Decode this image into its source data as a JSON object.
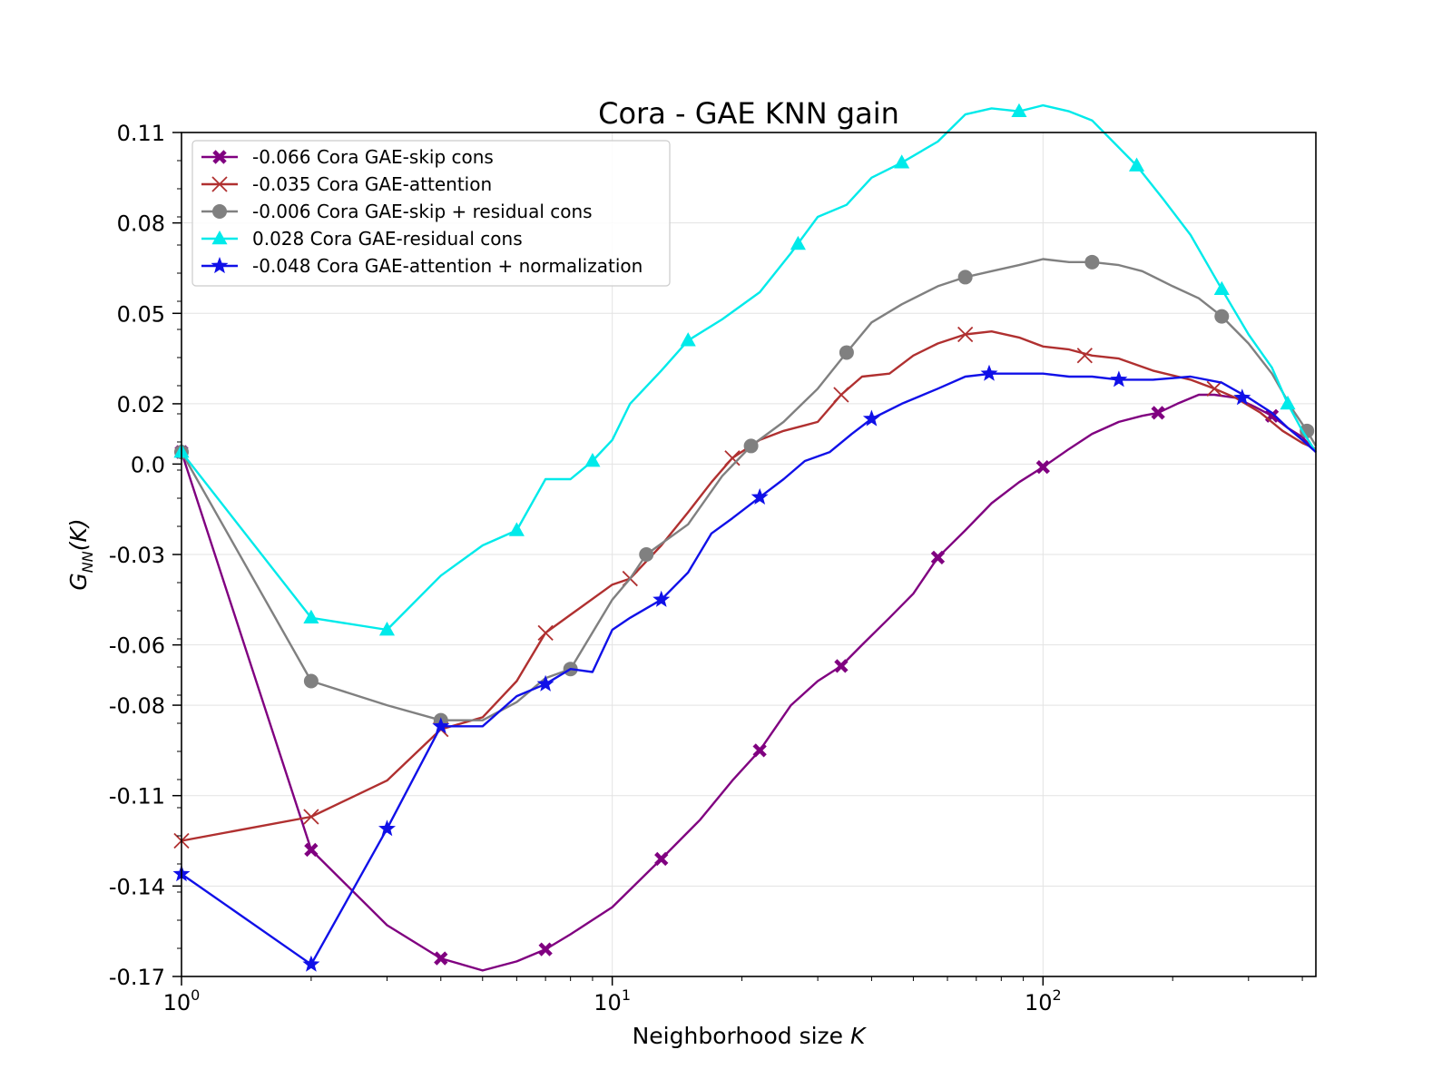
{
  "chart_data": {
    "type": "line",
    "title": "Cora - GAE KNN gain",
    "xlabel": "Neighborhood size",
    "xlabel_var": "K",
    "ylabel_main": "G",
    "ylabel_sub": "NN",
    "ylabel_arg": "(K)",
    "xscale": "log",
    "xlim": [
      1,
      430
    ],
    "ylim": [
      -0.17,
      0.11
    ],
    "x_ticks": [
      {
        "value": 1,
        "base": "10",
        "exp": "0"
      },
      {
        "value": 10,
        "base": "10",
        "exp": "1"
      },
      {
        "value": 100,
        "base": "10",
        "exp": "2"
      }
    ],
    "y_ticks": [
      {
        "value": 0.11,
        "label": "0.11"
      },
      {
        "value": 0.08,
        "label": "0.08"
      },
      {
        "value": 0.05,
        "label": "0.05"
      },
      {
        "value": 0.02,
        "label": "0.02"
      },
      {
        "value": 0.0,
        "label": "0.0"
      },
      {
        "value": -0.03,
        "label": "-0.03"
      },
      {
        "value": -0.06,
        "label": "-0.06"
      },
      {
        "value": -0.08,
        "label": "-0.08"
      },
      {
        "value": -0.11,
        "label": "-0.11"
      },
      {
        "value": -0.14,
        "label": "-0.14"
      },
      {
        "value": -0.17,
        "label": "-0.17"
      }
    ],
    "grid": true,
    "legend_position": "top-left",
    "series": [
      {
        "name": "-0.066 Cora GAE-skip cons",
        "color": "#800080",
        "marker": "X",
        "points": [
          [
            1,
            0.004
          ],
          [
            2,
            -0.128
          ],
          [
            3,
            -0.153
          ],
          [
            4,
            -0.164
          ],
          [
            5,
            -0.168
          ],
          [
            6,
            -0.165
          ],
          [
            7,
            -0.161
          ],
          [
            8,
            -0.156
          ],
          [
            10,
            -0.147
          ],
          [
            13,
            -0.131
          ],
          [
            16,
            -0.118
          ],
          [
            19,
            -0.105
          ],
          [
            22,
            -0.095
          ],
          [
            26,
            -0.08
          ],
          [
            30,
            -0.072
          ],
          [
            34,
            -0.067
          ],
          [
            38,
            -0.06
          ],
          [
            44,
            -0.051
          ],
          [
            50,
            -0.043
          ],
          [
            57,
            -0.031
          ],
          [
            66,
            -0.022
          ],
          [
            76,
            -0.013
          ],
          [
            88,
            -0.006
          ],
          [
            100,
            -0.001
          ],
          [
            115,
            0.005
          ],
          [
            130,
            0.01
          ],
          [
            150,
            0.014
          ],
          [
            170,
            0.016
          ],
          [
            185,
            0.017
          ],
          [
            205,
            0.02
          ],
          [
            230,
            0.023
          ],
          [
            250,
            0.023
          ],
          [
            280,
            0.022
          ],
          [
            310,
            0.019
          ],
          [
            340,
            0.016
          ],
          [
            370,
            0.012
          ],
          [
            400,
            0.009
          ],
          [
            430,
            0.004
          ]
        ],
        "markers": [
          [
            1,
            0.004
          ],
          [
            2,
            -0.128
          ],
          [
            4,
            -0.164
          ],
          [
            7,
            -0.161
          ],
          [
            13,
            -0.131
          ],
          [
            22,
            -0.095
          ],
          [
            34,
            -0.067
          ],
          [
            57,
            -0.031
          ],
          [
            100,
            -0.001
          ],
          [
            185,
            0.017
          ],
          [
            340,
            0.016
          ]
        ]
      },
      {
        "name": "-0.035 Cora GAE-attention",
        "color": "#b03030",
        "marker": "x",
        "points": [
          [
            1,
            -0.125
          ],
          [
            2,
            -0.117
          ],
          [
            3,
            -0.105
          ],
          [
            4,
            -0.088
          ],
          [
            5,
            -0.084
          ],
          [
            6,
            -0.072
          ],
          [
            7,
            -0.056
          ],
          [
            8,
            -0.05
          ],
          [
            10,
            -0.04
          ],
          [
            11,
            -0.038
          ],
          [
            13,
            -0.027
          ],
          [
            15,
            -0.016
          ],
          [
            17,
            -0.006
          ],
          [
            19,
            0.002
          ],
          [
            22,
            0.008
          ],
          [
            25,
            0.011
          ],
          [
            30,
            0.014
          ],
          [
            34,
            0.023
          ],
          [
            38,
            0.029
          ],
          [
            44,
            0.03
          ],
          [
            50,
            0.036
          ],
          [
            57,
            0.04
          ],
          [
            66,
            0.043
          ],
          [
            76,
            0.044
          ],
          [
            88,
            0.042
          ],
          [
            100,
            0.039
          ],
          [
            115,
            0.038
          ],
          [
            130,
            0.036
          ],
          [
            150,
            0.035
          ],
          [
            180,
            0.031
          ],
          [
            220,
            0.028
          ],
          [
            250,
            0.025
          ],
          [
            280,
            0.022
          ],
          [
            320,
            0.017
          ],
          [
            360,
            0.011
          ],
          [
            400,
            0.007
          ],
          [
            430,
            0.005
          ]
        ],
        "markers": [
          [
            1,
            -0.125
          ],
          [
            2,
            -0.117
          ],
          [
            4,
            -0.088
          ],
          [
            7,
            -0.056
          ],
          [
            11,
            -0.038
          ],
          [
            19,
            0.002
          ],
          [
            34,
            0.023
          ],
          [
            66,
            0.043
          ],
          [
            125,
            0.036
          ],
          [
            250,
            0.025
          ]
        ]
      },
      {
        "name": "-0.006 Cora GAE-skip + residual cons",
        "color": "#808080",
        "marker": "o",
        "points": [
          [
            1,
            0.004
          ],
          [
            2,
            -0.072
          ],
          [
            3,
            -0.08
          ],
          [
            4,
            -0.085
          ],
          [
            5,
            -0.085
          ],
          [
            6,
            -0.079
          ],
          [
            7,
            -0.071
          ],
          [
            8,
            -0.068
          ],
          [
            10,
            -0.045
          ],
          [
            11,
            -0.038
          ],
          [
            12,
            -0.03
          ],
          [
            15,
            -0.02
          ],
          [
            18,
            -0.004
          ],
          [
            21,
            0.006
          ],
          [
            25,
            0.014
          ],
          [
            30,
            0.025
          ],
          [
            35,
            0.037
          ],
          [
            40,
            0.047
          ],
          [
            47,
            0.053
          ],
          [
            57,
            0.059
          ],
          [
            66,
            0.062
          ],
          [
            76,
            0.064
          ],
          [
            88,
            0.066
          ],
          [
            100,
            0.068
          ],
          [
            115,
            0.067
          ],
          [
            130,
            0.067
          ],
          [
            150,
            0.066
          ],
          [
            170,
            0.064
          ],
          [
            200,
            0.059
          ],
          [
            230,
            0.055
          ],
          [
            260,
            0.049
          ],
          [
            300,
            0.04
          ],
          [
            340,
            0.03
          ],
          [
            380,
            0.018
          ],
          [
            410,
            0.011
          ],
          [
            430,
            0.006
          ]
        ],
        "markers": [
          [
            1,
            0.004
          ],
          [
            2,
            -0.072
          ],
          [
            4,
            -0.085
          ],
          [
            8,
            -0.068
          ],
          [
            12,
            -0.03
          ],
          [
            21,
            0.006
          ],
          [
            35,
            0.037
          ],
          [
            66,
            0.062
          ],
          [
            130,
            0.067
          ],
          [
            260,
            0.049
          ],
          [
            410,
            0.011
          ]
        ]
      },
      {
        "name": "0.028 Cora GAE-residual cons",
        "color": "#00eaea",
        "marker": "^",
        "points": [
          [
            1,
            0.004
          ],
          [
            2,
            -0.051
          ],
          [
            3,
            -0.055
          ],
          [
            4,
            -0.037
          ],
          [
            5,
            -0.027
          ],
          [
            6,
            -0.022
          ],
          [
            7,
            -0.005
          ],
          [
            8,
            -0.005
          ],
          [
            9,
            0.001
          ],
          [
            10,
            0.008
          ],
          [
            11,
            0.02
          ],
          [
            13,
            0.031
          ],
          [
            15,
            0.041
          ],
          [
            18,
            0.048
          ],
          [
            22,
            0.057
          ],
          [
            26,
            0.07
          ],
          [
            30,
            0.082
          ],
          [
            35,
            0.086
          ],
          [
            40,
            0.095
          ],
          [
            47,
            0.1
          ],
          [
            57,
            0.107
          ],
          [
            66,
            0.116
          ],
          [
            76,
            0.118
          ],
          [
            88,
            0.117
          ],
          [
            100,
            0.119
          ],
          [
            115,
            0.117
          ],
          [
            130,
            0.114
          ],
          [
            150,
            0.105
          ],
          [
            165,
            0.099
          ],
          [
            190,
            0.088
          ],
          [
            220,
            0.076
          ],
          [
            260,
            0.058
          ],
          [
            300,
            0.043
          ],
          [
            340,
            0.032
          ],
          [
            370,
            0.02
          ],
          [
            400,
            0.011
          ],
          [
            430,
            0.004
          ]
        ],
        "markers": [
          [
            1,
            0.004
          ],
          [
            2,
            -0.051
          ],
          [
            3,
            -0.055
          ],
          [
            6,
            -0.022
          ],
          [
            9,
            0.001
          ],
          [
            15,
            0.041
          ],
          [
            27,
            0.073
          ],
          [
            47,
            0.1
          ],
          [
            88,
            0.117
          ],
          [
            165,
            0.099
          ],
          [
            260,
            0.058
          ],
          [
            370,
            0.02
          ]
        ]
      },
      {
        "name": "-0.048 Cora GAE-attention + normalization",
        "color": "#1010e8",
        "marker": "*",
        "points": [
          [
            1,
            -0.136
          ],
          [
            2,
            -0.166
          ],
          [
            3,
            -0.121
          ],
          [
            4,
            -0.087
          ],
          [
            5,
            -0.087
          ],
          [
            6,
            -0.077
          ],
          [
            7,
            -0.073
          ],
          [
            8,
            -0.068
          ],
          [
            9,
            -0.069
          ],
          [
            10,
            -0.055
          ],
          [
            11,
            -0.051
          ],
          [
            13,
            -0.045
          ],
          [
            15,
            -0.036
          ],
          [
            17,
            -0.023
          ],
          [
            19,
            -0.018
          ],
          [
            22,
            -0.011
          ],
          [
            25,
            -0.005
          ],
          [
            28,
            0.001
          ],
          [
            32,
            0.004
          ],
          [
            36,
            0.01
          ],
          [
            40,
            0.015
          ],
          [
            47,
            0.02
          ],
          [
            57,
            0.025
          ],
          [
            66,
            0.029
          ],
          [
            76,
            0.03
          ],
          [
            88,
            0.03
          ],
          [
            100,
            0.03
          ],
          [
            115,
            0.029
          ],
          [
            130,
            0.029
          ],
          [
            150,
            0.028
          ],
          [
            180,
            0.028
          ],
          [
            220,
            0.029
          ],
          [
            260,
            0.027
          ],
          [
            300,
            0.022
          ],
          [
            340,
            0.017
          ],
          [
            370,
            0.012
          ],
          [
            400,
            0.008
          ],
          [
            430,
            0.004
          ]
        ],
        "markers": [
          [
            1,
            -0.136
          ],
          [
            2,
            -0.166
          ],
          [
            3,
            -0.121
          ],
          [
            4,
            -0.087
          ],
          [
            7,
            -0.073
          ],
          [
            13,
            -0.045
          ],
          [
            22,
            -0.011
          ],
          [
            40,
            0.015
          ],
          [
            75,
            0.03
          ],
          [
            150,
            0.028
          ],
          [
            290,
            0.022
          ]
        ]
      }
    ]
  }
}
